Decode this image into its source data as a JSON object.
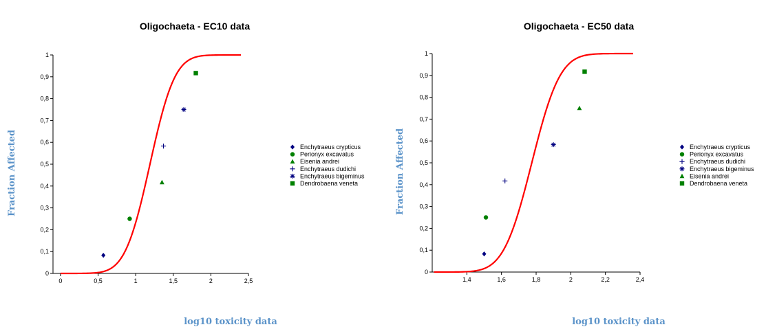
{
  "chart_data": [
    {
      "type": "scatter",
      "title": "Oligochaeta - EC10 data",
      "xlabel": "log10 toxicity data",
      "ylabel": "Fraction Affected",
      "xlim": [
        -0.1,
        2.5
      ],
      "ylim": [
        0,
        1
      ],
      "xticks": [
        "0",
        "0,5",
        "1",
        "1,5",
        "2",
        "2,5"
      ],
      "xtick_values": [
        0,
        0.5,
        1,
        1.5,
        2,
        2.5
      ],
      "yticks": [
        "0",
        "0,1",
        "0,2",
        "0,3",
        "0,4",
        "0,5",
        "0,6",
        "0,7",
        "0,8",
        "0,9",
        "1"
      ],
      "ytick_values": [
        0,
        0.1,
        0.2,
        0.3,
        0.4,
        0.5,
        0.6,
        0.7,
        0.8,
        0.9,
        1
      ],
      "legend_position": "right",
      "grid": false,
      "curve": {
        "type": "logistic-fit",
        "color": "#ff0000",
        "mu": 1.19,
        "sigma": 0.26,
        "x_range": [
          0,
          2.4
        ]
      },
      "series": [
        {
          "name": "Enchytraeus crypticus",
          "marker": "diamond",
          "color": "#000080",
          "points": [
            [
              0.57,
              0.083
            ]
          ]
        },
        {
          "name": "Perionyx excavatus",
          "marker": "circle",
          "color": "#008000",
          "points": [
            [
              0.92,
              0.25
            ]
          ]
        },
        {
          "name": "Eisenia andrei",
          "marker": "triangle",
          "color": "#008000",
          "points": [
            [
              1.35,
              0.417
            ]
          ]
        },
        {
          "name": "Enchytraeus dudichi",
          "marker": "plus",
          "color": "#000080",
          "points": [
            [
              1.37,
              0.583
            ]
          ]
        },
        {
          "name": "Enchytraeus bigeminus",
          "marker": "asterisk",
          "color": "#000080",
          "points": [
            [
              1.64,
              0.75
            ]
          ]
        },
        {
          "name": "Dendrobaena veneta",
          "marker": "square",
          "color": "#008000",
          "points": [
            [
              1.8,
              0.917
            ]
          ]
        }
      ]
    },
    {
      "type": "scatter",
      "title": "Oligochaeta - EC50 data",
      "xlabel": "log10 toxicity data",
      "ylabel": "Fraction Affected",
      "xlim": [
        1.2,
        2.4
      ],
      "ylim": [
        0,
        1
      ],
      "xticks": [
        "1,4",
        "1,6",
        "1,8",
        "2",
        "2,2",
        "2,4"
      ],
      "xtick_values": [
        1.4,
        1.6,
        1.8,
        2.0,
        2.2,
        2.4
      ],
      "yticks": [
        "0",
        "0,1",
        "0,2",
        "0,3",
        "0,4",
        "0,5",
        "0,6",
        "0,7",
        "0,8",
        "0,9",
        "1"
      ],
      "ytick_values": [
        0,
        0.1,
        0.2,
        0.3,
        0.4,
        0.5,
        0.6,
        0.7,
        0.8,
        0.9,
        1
      ],
      "legend_position": "right",
      "grid": false,
      "curve": {
        "type": "logistic-fit",
        "color": "#ff0000",
        "mu": 1.775,
        "sigma": 0.128,
        "x_range": [
          1.21,
          2.36
        ]
      },
      "series": [
        {
          "name": "Enchytraeus crypticus",
          "marker": "diamond",
          "color": "#000080",
          "points": [
            [
              1.5,
              0.083
            ]
          ]
        },
        {
          "name": "Perionyx excavatus",
          "marker": "circle",
          "color": "#008000",
          "points": [
            [
              1.51,
              0.25
            ]
          ]
        },
        {
          "name": "Enchytraeus dudichi",
          "marker": "plus",
          "color": "#000080",
          "points": [
            [
              1.62,
              0.417
            ]
          ]
        },
        {
          "name": "Enchytraeus bigeminus",
          "marker": "asterisk",
          "color": "#000080",
          "points": [
            [
              1.9,
              0.583
            ]
          ]
        },
        {
          "name": "Eisenia andrei",
          "marker": "triangle",
          "color": "#008000",
          "points": [
            [
              2.05,
              0.75
            ]
          ]
        },
        {
          "name": "Dendrobaena veneta",
          "marker": "square",
          "color": "#008000",
          "points": [
            [
              2.08,
              0.917
            ]
          ]
        }
      ]
    }
  ]
}
